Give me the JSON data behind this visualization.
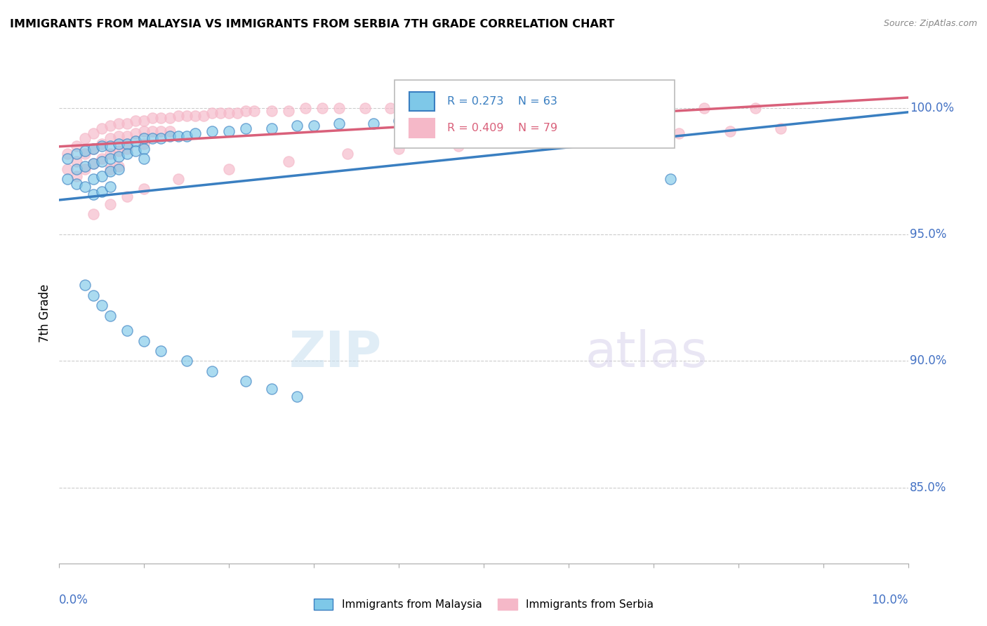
{
  "title": "IMMIGRANTS FROM MALAYSIA VS IMMIGRANTS FROM SERBIA 7TH GRADE CORRELATION CHART",
  "source": "Source: ZipAtlas.com",
  "ylabel": "7th Grade",
  "yaxis_labels": [
    "100.0%",
    "95.0%",
    "90.0%",
    "85.0%"
  ],
  "yaxis_values": [
    1.0,
    0.95,
    0.9,
    0.85
  ],
  "xlim": [
    0.0,
    0.1
  ],
  "ylim": [
    0.82,
    1.018
  ],
  "legend_malaysia": "Immigrants from Malaysia",
  "legend_serbia": "Immigrants from Serbia",
  "R_malaysia": 0.273,
  "N_malaysia": 63,
  "R_serbia": 0.409,
  "N_serbia": 79,
  "color_malaysia": "#7ec8e8",
  "color_serbia": "#f5b8c8",
  "line_color_malaysia": "#3a7fc1",
  "line_color_serbia": "#d9607a",
  "watermark_zip": "ZIP",
  "watermark_atlas": "atlas",
  "malaysia_x": [
    0.001,
    0.001,
    0.002,
    0.002,
    0.002,
    0.003,
    0.003,
    0.003,
    0.004,
    0.004,
    0.004,
    0.004,
    0.005,
    0.005,
    0.005,
    0.005,
    0.006,
    0.006,
    0.006,
    0.006,
    0.007,
    0.007,
    0.007,
    0.008,
    0.008,
    0.009,
    0.009,
    0.01,
    0.01,
    0.01,
    0.011,
    0.012,
    0.013,
    0.014,
    0.015,
    0.016,
    0.018,
    0.02,
    0.022,
    0.025,
    0.028,
    0.03,
    0.033,
    0.037,
    0.04,
    0.045,
    0.05,
    0.055,
    0.06,
    0.068,
    0.003,
    0.004,
    0.005,
    0.006,
    0.008,
    0.01,
    0.012,
    0.015,
    0.018,
    0.022,
    0.025,
    0.028,
    0.072
  ],
  "malaysia_y": [
    0.98,
    0.972,
    0.982,
    0.976,
    0.97,
    0.983,
    0.977,
    0.969,
    0.984,
    0.978,
    0.972,
    0.966,
    0.985,
    0.979,
    0.973,
    0.967,
    0.985,
    0.98,
    0.975,
    0.969,
    0.986,
    0.981,
    0.976,
    0.986,
    0.982,
    0.987,
    0.983,
    0.988,
    0.984,
    0.98,
    0.988,
    0.988,
    0.989,
    0.989,
    0.989,
    0.99,
    0.991,
    0.991,
    0.992,
    0.992,
    0.993,
    0.993,
    0.994,
    0.994,
    0.995,
    0.995,
    0.996,
    0.996,
    0.997,
    0.998,
    0.93,
    0.926,
    0.922,
    0.918,
    0.912,
    0.908,
    0.904,
    0.9,
    0.896,
    0.892,
    0.889,
    0.886,
    0.972
  ],
  "serbia_x": [
    0.001,
    0.001,
    0.002,
    0.002,
    0.002,
    0.003,
    0.003,
    0.003,
    0.004,
    0.004,
    0.004,
    0.005,
    0.005,
    0.005,
    0.006,
    0.006,
    0.006,
    0.006,
    0.007,
    0.007,
    0.007,
    0.007,
    0.008,
    0.008,
    0.008,
    0.009,
    0.009,
    0.01,
    0.01,
    0.01,
    0.011,
    0.011,
    0.012,
    0.012,
    0.013,
    0.013,
    0.014,
    0.015,
    0.016,
    0.017,
    0.018,
    0.019,
    0.02,
    0.021,
    0.022,
    0.023,
    0.025,
    0.027,
    0.029,
    0.031,
    0.033,
    0.036,
    0.039,
    0.042,
    0.045,
    0.048,
    0.052,
    0.056,
    0.06,
    0.065,
    0.07,
    0.076,
    0.082,
    0.004,
    0.006,
    0.008,
    0.01,
    0.014,
    0.02,
    0.027,
    0.034,
    0.04,
    0.047,
    0.053,
    0.06,
    0.066,
    0.073,
    0.079,
    0.085
  ],
  "serbia_y": [
    0.982,
    0.976,
    0.985,
    0.979,
    0.973,
    0.988,
    0.982,
    0.976,
    0.99,
    0.984,
    0.978,
    0.992,
    0.986,
    0.98,
    0.993,
    0.988,
    0.982,
    0.976,
    0.994,
    0.989,
    0.983,
    0.977,
    0.994,
    0.989,
    0.984,
    0.995,
    0.99,
    0.995,
    0.991,
    0.986,
    0.996,
    0.991,
    0.996,
    0.991,
    0.996,
    0.991,
    0.997,
    0.997,
    0.997,
    0.997,
    0.998,
    0.998,
    0.998,
    0.998,
    0.999,
    0.999,
    0.999,
    0.999,
    1.0,
    1.0,
    1.0,
    1.0,
    1.0,
    1.0,
    1.0,
    1.0,
    1.0,
    1.0,
    1.0,
    1.0,
    1.0,
    1.0,
    1.0,
    0.958,
    0.962,
    0.965,
    0.968,
    0.972,
    0.976,
    0.979,
    0.982,
    0.984,
    0.985,
    0.987,
    0.988,
    0.989,
    0.99,
    0.991,
    0.992
  ]
}
